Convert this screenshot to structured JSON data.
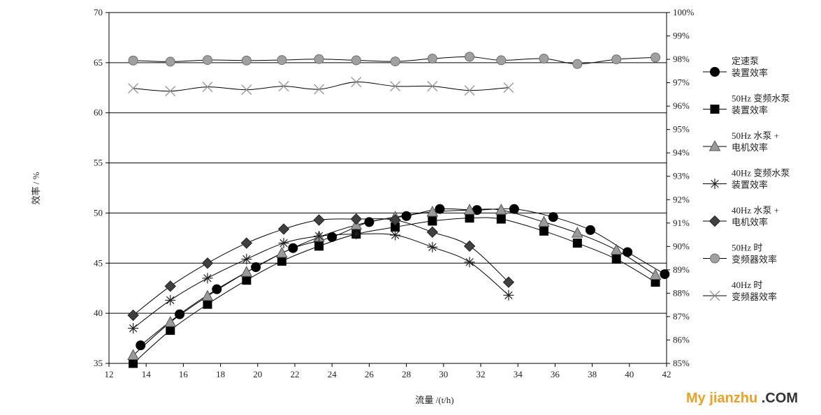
{
  "chart_data": {
    "type": "line",
    "xlabel": "流量 /(t/h)",
    "ylabel": "效率 / %",
    "xlim": [
      12,
      42
    ],
    "ylim": [
      35,
      70
    ],
    "y2lim": [
      85,
      100
    ],
    "x_ticks": [
      "12",
      "14",
      "16",
      "18",
      "20",
      "22",
      "24",
      "26",
      "28",
      "30",
      "32",
      "34",
      "36",
      "38",
      "40",
      "42"
    ],
    "y_ticks": [
      "35",
      "40",
      "45",
      "50",
      "55",
      "60",
      "65",
      "70"
    ],
    "y2_ticks": [
      "85%",
      "86%",
      "87%",
      "88%",
      "89%",
      "90%",
      "91%",
      "92%",
      "93%",
      "94%",
      "95%",
      "96%",
      "97%",
      "98%",
      "99%",
      "100%"
    ],
    "grid": "horizontal",
    "legend_position": "right",
    "series": [
      {
        "name": "定速泵装置效率",
        "legend": [
          "定速泵",
          "装置效率"
        ],
        "marker": "circle",
        "color": "#000000",
        "axis": "left",
        "x": [
          13.7,
          15.8,
          17.8,
          19.9,
          21.9,
          24.0,
          26.0,
          28.0,
          29.8,
          31.8,
          33.8,
          35.9,
          37.9,
          39.9,
          41.9
        ],
        "y": [
          36.8,
          39.9,
          42.4,
          44.6,
          46.5,
          47.6,
          49.1,
          49.7,
          50.4,
          50.3,
          50.4,
          49.6,
          48.3,
          46.1,
          43.9
        ]
      },
      {
        "name": "50Hz 变频水泵装置效率",
        "legend": [
          "50Hz 变频水泵",
          "装置效率"
        ],
        "marker": "square",
        "color": "#000000",
        "axis": "left",
        "x": [
          13.3,
          15.3,
          17.3,
          19.4,
          21.3,
          23.3,
          25.3,
          27.4,
          29.4,
          31.4,
          33.1,
          35.4,
          37.2,
          39.3,
          41.4
        ],
        "y": [
          35.0,
          38.3,
          40.9,
          43.3,
          45.2,
          46.7,
          47.9,
          48.6,
          49.2,
          49.5,
          49.4,
          48.2,
          47.0,
          45.4,
          43.1
        ]
      },
      {
        "name": "50Hz 水泵 + 电机效率",
        "legend": [
          "50Hz 水泵 +",
          "电机效率"
        ],
        "marker": "triangle",
        "color": "#999999",
        "axis": "left",
        "x": [
          13.3,
          15.3,
          17.3,
          19.4,
          21.3,
          23.3,
          25.3,
          27.4,
          29.4,
          31.4,
          33.1,
          35.4,
          37.2,
          39.3,
          41.4
        ],
        "y": [
          35.8,
          39.1,
          41.7,
          44.1,
          46.0,
          47.6,
          48.8,
          49.6,
          50.1,
          50.3,
          50.3,
          49.1,
          48.0,
          46.3,
          43.8
        ]
      },
      {
        "name": "40Hz 变频水泵装置效率",
        "legend": [
          "40Hz 变频水泵",
          "装置效率"
        ],
        "marker": "asterisk",
        "color": "#000000",
        "axis": "left",
        "x": [
          13.3,
          15.3,
          17.3,
          19.4,
          21.4,
          23.3,
          25.3,
          27.4,
          29.4,
          31.4,
          33.5
        ],
        "y": [
          38.5,
          41.3,
          43.5,
          45.4,
          47.0,
          47.7,
          47.9,
          47.8,
          46.6,
          45.1,
          41.8
        ]
      },
      {
        "name": "40Hz 水泵 + 电机效率",
        "legend": [
          "40Hz 水泵 +",
          "电机效率"
        ],
        "marker": "diamond",
        "color": "#333333",
        "axis": "left",
        "x": [
          13.3,
          15.3,
          17.3,
          19.4,
          21.4,
          23.3,
          25.3,
          27.4,
          29.4,
          31.4,
          33.5
        ],
        "y": [
          39.8,
          42.7,
          45.0,
          47.0,
          48.4,
          49.3,
          49.4,
          49.3,
          48.1,
          46.7,
          43.1
        ]
      },
      {
        "name": "50Hz 时变频器效率",
        "legend": [
          "50Hz 时",
          "变频器效率"
        ],
        "marker": "circle",
        "color": "#a0a0a0",
        "axis": "right",
        "x": [
          13.3,
          15.3,
          17.3,
          19.4,
          21.3,
          23.3,
          25.3,
          27.4,
          29.4,
          31.4,
          33.1,
          35.4,
          37.2,
          39.3,
          41.4
        ],
        "y": [
          97.95,
          97.9,
          97.97,
          97.95,
          97.97,
          98.01,
          97.96,
          97.91,
          98.03,
          98.11,
          97.96,
          98.03,
          97.8,
          98.0,
          98.08
        ]
      },
      {
        "name": "40Hz 时变频器效率",
        "legend": [
          "40Hz 时",
          "变频器效率"
        ],
        "marker": "x",
        "color": "#a0a0a0",
        "axis": "right",
        "x": [
          13.3,
          15.3,
          17.3,
          19.4,
          21.4,
          23.3,
          25.3,
          27.4,
          29.4,
          31.4,
          33.5
        ],
        "y": [
          96.76,
          96.64,
          96.82,
          96.7,
          96.85,
          96.72,
          97.03,
          96.85,
          96.85,
          96.67,
          96.79
        ]
      }
    ]
  },
  "watermark": {
    "main": "My jianzhu",
    "suffix": ".COM"
  }
}
